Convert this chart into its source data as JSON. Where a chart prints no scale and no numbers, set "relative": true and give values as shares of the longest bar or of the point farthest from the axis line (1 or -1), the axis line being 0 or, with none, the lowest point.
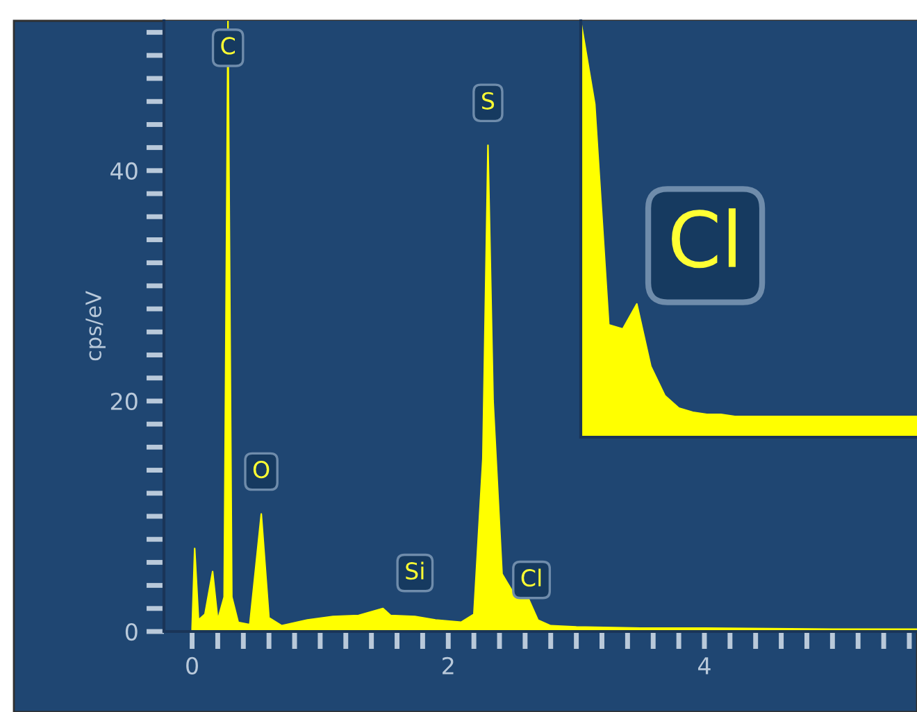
{
  "chart_data": [
    {
      "type": "area",
      "ylabel": "cps/eV",
      "grid": false,
      "legend": false,
      "x": [
        0.0,
        0.02,
        0.05,
        0.1,
        0.16,
        0.2,
        0.25,
        0.28,
        0.31,
        0.36,
        0.45,
        0.54,
        0.6,
        0.7,
        0.9,
        1.1,
        1.3,
        1.49,
        1.55,
        1.74,
        1.9,
        2.1,
        2.2,
        2.27,
        2.31,
        2.35,
        2.42,
        2.5,
        2.62,
        2.7,
        2.8,
        3.0,
        3.5,
        4.0,
        5.0,
        5.66
      ],
      "series": [
        {
          "color": "#ffff00",
          "values": [
            0.3,
            7.2,
            1,
            1.5,
            5.2,
            1,
            3,
            53,
            3,
            0.8,
            0.6,
            10.2,
            1.2,
            0.5,
            1.0,
            1.3,
            1.4,
            2.0,
            1.4,
            1.3,
            1.0,
            0.8,
            1.5,
            15,
            42.2,
            20,
            5,
            3.5,
            3.0,
            1.0,
            0.5,
            0.4,
            0.3,
            0.3,
            0.2,
            0.2
          ]
        }
      ],
      "xlim": [
        -0.22,
        5.66
      ],
      "ylim": [
        0,
        53
      ],
      "xticks": [
        0,
        {
          "value": 0.2,
          "label": null
        },
        {
          "value": 0.4,
          "label": null
        },
        {
          "value": 0.6,
          "label": null
        },
        {
          "value": 0.8,
          "label": null
        },
        {
          "value": 1,
          "label": null
        },
        {
          "value": 1.2,
          "label": null
        },
        {
          "value": 1.4,
          "label": null
        },
        {
          "value": 1.6,
          "label": null
        },
        {
          "value": 1.8,
          "label": null
        },
        2,
        {
          "value": 2.2,
          "label": null
        },
        {
          "value": 2.4,
          "label": null
        },
        {
          "value": 2.6,
          "label": null
        },
        {
          "value": 2.8,
          "label": null
        },
        {
          "value": 3,
          "label": null
        },
        {
          "value": 3.2,
          "label": null
        },
        {
          "value": 3.4,
          "label": null
        },
        {
          "value": 3.6,
          "label": null
        },
        {
          "value": 3.8,
          "label": null
        },
        4,
        {
          "value": 4.2,
          "label": null
        },
        {
          "value": 4.4,
          "label": null
        },
        {
          "value": 4.6,
          "label": null
        },
        {
          "value": 4.8,
          "label": null
        },
        {
          "value": 5,
          "label": null
        },
        {
          "value": 5.2,
          "label": null
        },
        {
          "value": 5.4,
          "label": null
        },
        {
          "value": 5.6,
          "label": null
        }
      ],
      "yticks": [
        0,
        {
          "value": 2,
          "label": null
        },
        {
          "value": 4,
          "label": null
        },
        {
          "value": 6,
          "label": null
        },
        {
          "value": 8,
          "label": null
        },
        {
          "value": 10,
          "label": null
        },
        {
          "value": 12,
          "label": null
        },
        {
          "value": 14,
          "label": null
        },
        {
          "value": 16,
          "label": null
        },
        {
          "value": 18,
          "label": null
        },
        20,
        {
          "value": 22,
          "label": null
        },
        {
          "value": 24,
          "label": null
        },
        {
          "value": 26,
          "label": null
        },
        {
          "value": 28,
          "label": null
        },
        {
          "value": 30,
          "label": null
        },
        {
          "value": 32,
          "label": null
        },
        {
          "value": 34,
          "label": null
        },
        {
          "value": 36,
          "label": null
        },
        {
          "value": 38,
          "label": null
        },
        40,
        {
          "value": 42,
          "label": null
        },
        {
          "value": 44,
          "label": null
        },
        {
          "value": 46,
          "label": null
        },
        {
          "value": 48,
          "label": null
        },
        {
          "value": 50,
          "label": null
        },
        {
          "value": 52,
          "label": null
        }
      ],
      "annotations": [
        {
          "text": "C",
          "x": 0.28,
          "y": 53
        },
        {
          "text": "O",
          "x": 0.54,
          "y": 10.2
        },
        {
          "text": "Si",
          "x": 1.74,
          "y": 1.4
        },
        {
          "text": "S",
          "x": 2.31,
          "y": 42.2
        },
        {
          "text": "Cl",
          "x": 2.65,
          "y": 0.8
        }
      ]
    },
    {
      "type": "area",
      "relative": true,
      "legend": false,
      "grid": false,
      "categories": [
        null,
        null,
        null,
        null,
        null,
        null,
        null,
        null,
        null,
        null,
        null,
        null,
        null,
        null,
        null,
        null,
        null,
        null,
        null,
        null,
        null,
        null,
        null,
        null,
        null
      ],
      "series": [
        {
          "color": "#ffff00",
          "values": [
            1.0,
            0.8,
            0.27,
            0.26,
            0.32,
            0.17,
            0.1,
            0.07,
            0.06,
            0.055,
            0.055,
            0.05,
            0.05,
            0.05,
            0.05,
            0.05,
            0.05,
            0.05,
            0.05,
            0.05,
            0.05,
            0.05,
            0.05,
            0.05,
            0.05
          ]
        }
      ],
      "annotations": [
        "Cl"
      ]
    }
  ]
}
